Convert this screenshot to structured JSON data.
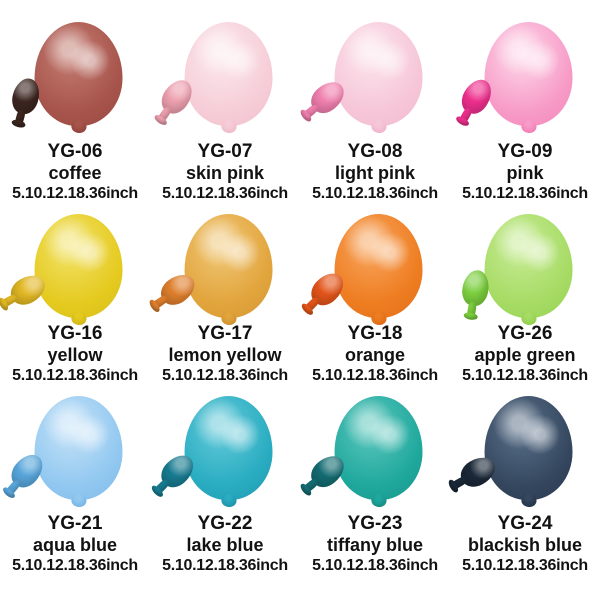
{
  "page": {
    "background_color": "#ffffff",
    "text_color": "#121212",
    "description": "Latex balloon color chart, 4 columns x 3 rows, each item shows an inflated balloon photo with a small deflated balloon beside it"
  },
  "products": [
    {
      "code": "YG-06",
      "name": "coffee",
      "sizes": "5.10.12.18.36inch",
      "colors": {
        "body": "#a7544c",
        "light": "#c47d72",
        "dark": "#8c4038",
        "mini": "#3c2620"
      },
      "mini_tilt_deg": 15
    },
    {
      "code": "YG-07",
      "name": "skin pink",
      "sizes": "5.10.12.18.36inch",
      "colors": {
        "body": "#f6cdd7",
        "light": "#fce9ee",
        "dark": "#eeb6c4",
        "mini": "#ed9fae"
      },
      "mini_tilt_deg": 35
    },
    {
      "code": "YG-08",
      "name": "light pink",
      "sizes": "5.10.12.18.36inch",
      "colors": {
        "body": "#f6c6d8",
        "light": "#fce4ec",
        "dark": "#efafc9",
        "mini": "#f07fae"
      },
      "mini_tilt_deg": 50
    },
    {
      "code": "YG-09",
      "name": "pink",
      "sizes": "5.10.12.18.36inch",
      "colors": {
        "body": "#f79bc7",
        "light": "#fdd8e9",
        "dark": "#f176b2",
        "mini": "#ee2f8d"
      },
      "mini_tilt_deg": 30
    },
    {
      "code": "YG-16",
      "name": "yellow",
      "sizes": "5.10.12.18.36inch",
      "colors": {
        "body": "#e5ca1f",
        "light": "#f2e36a",
        "dark": "#cdb217",
        "mini": "#e2b824"
      },
      "mini_tilt_deg": 60
    },
    {
      "code": "YG-17",
      "name": "lemon yellow",
      "sizes": "5.10.12.18.36inch",
      "colors": {
        "body": "#e2a43c",
        "light": "#f0c877",
        "dark": "#ca8c2c",
        "mini": "#df7f2d"
      },
      "mini_tilt_deg": 55
    },
    {
      "code": "YG-18",
      "name": "orange",
      "sizes": "5.10.12.18.36inch",
      "colors": {
        "body": "#ee7c20",
        "light": "#f8a65e",
        "dark": "#d96613",
        "mini": "#e3551a"
      },
      "mini_tilt_deg": 45
    },
    {
      "code": "YG-26",
      "name": "apple green",
      "sizes": "5.10.12.18.36inch",
      "colors": {
        "body": "#a6db64",
        "light": "#c8ec96",
        "dark": "#8bcc45",
        "mini": "#7bce3e"
      },
      "mini_tilt_deg": 10
    },
    {
      "code": "YG-21",
      "name": "aqua blue",
      "sizes": "5.10.12.18.36inch",
      "colors": {
        "body": "#92c8f0",
        "light": "#c4e2f8",
        "dark": "#6fb0e4",
        "mini": "#58a6db"
      },
      "mini_tilt_deg": 40
    },
    {
      "code": "YG-22",
      "name": "lake blue",
      "sizes": "5.10.12.18.36inch",
      "colors": {
        "body": "#29acc1",
        "light": "#64cada",
        "dark": "#1b8ba1",
        "mini": "#187b90"
      },
      "mini_tilt_deg": 45
    },
    {
      "code": "YG-23",
      "name": "tiffany blue",
      "sizes": "5.10.12.18.36inch",
      "colors": {
        "body": "#1fa89d",
        "light": "#5cc7bd",
        "dark": "#15857e",
        "mini": "#146c72"
      },
      "mini_tilt_deg": 50
    },
    {
      "code": "YG-24",
      "name": "blackish blue",
      "sizes": "5.10.12.18.36inch",
      "colors": {
        "body": "#34475f",
        "light": "#5a7089",
        "dark": "#202e42",
        "mini": "#1b2838"
      },
      "mini_tilt_deg": 60
    }
  ]
}
